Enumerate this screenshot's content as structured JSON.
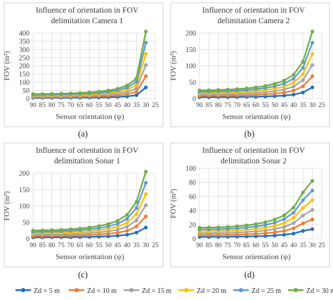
{
  "figure": {
    "legend": [
      {
        "label": "Zd = 5 m",
        "color": "#1f6fc0"
      },
      {
        "label": "Zd = 10 m",
        "color": "#ee7d31"
      },
      {
        "label": "Zd = 15 m",
        "color": "#a5a5a5"
      },
      {
        "label": "Zd = 20 m",
        "color": "#fec000"
      },
      {
        "label": "Zd = 25 m",
        "color": "#5b9bd5"
      },
      {
        "label": "Zd = 30 m",
        "color": "#6fad46"
      }
    ]
  },
  "chart_data": [
    {
      "type": "line",
      "panel_label": "(a)",
      "title": "Influence of orientation in FOV delimitation Camera 1",
      "title_lines": [
        "Influence of orientation in FOV",
        "delimitation Camera 1"
      ],
      "xlabel": "Sensor orientation (ψ)",
      "ylabel": "FOV (m²)",
      "x": [
        90,
        85,
        80,
        75,
        70,
        65,
        60,
        55,
        50,
        45,
        40,
        35,
        30
      ],
      "x_ticks": [
        90,
        85,
        80,
        75,
        70,
        65,
        60,
        55,
        50,
        45,
        40,
        35,
        30,
        25
      ],
      "ylim": [
        0,
        400
      ],
      "y_ticks": [
        0,
        50,
        100,
        150,
        200,
        250,
        300,
        350,
        400
      ],
      "grid": true,
      "series": [
        {
          "name": "Zd = 5 m",
          "values": [
            4.6,
            4.7,
            4.8,
            5.0,
            5.3,
            5.7,
            6.3,
            7.1,
            8.2,
            10.1,
            13.4,
            20.6,
            68.3
          ]
        },
        {
          "name": "Zd = 10 m",
          "values": [
            9.3,
            9.4,
            9.7,
            10.1,
            10.7,
            11.5,
            12.6,
            14.2,
            16.5,
            20.2,
            26.7,
            41.2,
            136.6
          ]
        },
        {
          "name": "Zd = 15 m",
          "values": [
            13.9,
            14.1,
            14.5,
            15.1,
            16.0,
            17.2,
            18.9,
            21.3,
            24.7,
            30.3,
            40.1,
            61.8,
            204.9
          ]
        },
        {
          "name": "Zd = 20 m",
          "values": [
            18.5,
            18.8,
            19.4,
            20.2,
            21.3,
            22.9,
            25.2,
            28.4,
            33.0,
            40.4,
            53.4,
            82.4,
            273.2
          ]
        },
        {
          "name": "Zd = 25 m",
          "values": [
            23.1,
            23.5,
            24.2,
            25.2,
            26.6,
            28.6,
            31.5,
            35.5,
            41.2,
            50.5,
            66.8,
            103.0,
            341.5
          ]
        },
        {
          "name": "Zd = 30 m",
          "values": [
            27.8,
            28.2,
            29.1,
            30.3,
            32.0,
            34.4,
            37.8,
            42.6,
            49.5,
            60.6,
            80.1,
            123.6,
            409.8
          ]
        }
      ]
    },
    {
      "type": "line",
      "panel_label": "(b)",
      "title": "Influence of orientation in FOV delimitation Camera 2",
      "title_lines": [
        "Influence of orientation in FOV",
        "delimitation Camera 2"
      ],
      "xlabel": "Sensor orientation (ψ)",
      "ylabel": "FOV (m²)",
      "x": [
        90,
        85,
        80,
        75,
        70,
        65,
        60,
        55,
        50,
        45,
        40,
        35,
        30
      ],
      "x_ticks": [
        90,
        85,
        80,
        75,
        70,
        65,
        60,
        55,
        50,
        45,
        40,
        35,
        30,
        25
      ],
      "ylim": [
        0,
        200
      ],
      "y_ticks": [
        0,
        50,
        100,
        150,
        200
      ],
      "grid": true,
      "series": [
        {
          "name": "Zd = 5 m",
          "values": [
            4.2,
            4.3,
            4.4,
            4.6,
            4.8,
            5.2,
            5.7,
            6.4,
            7.5,
            9.2,
            12.2,
            18.7,
            34.2
          ]
        },
        {
          "name": "Zd = 10 m",
          "values": [
            8.4,
            8.5,
            8.8,
            9.2,
            9.7,
            10.4,
            11.5,
            12.9,
            15.0,
            18.3,
            24.3,
            37.5,
            68.3
          ]
        },
        {
          "name": "Zd = 15 m",
          "values": [
            12.6,
            12.8,
            13.2,
            13.7,
            14.5,
            15.6,
            17.2,
            19.3,
            22.5,
            27.5,
            36.5,
            56.2,
            102.5
          ]
        },
        {
          "name": "Zd = 20 m",
          "values": [
            16.8,
            17.1,
            17.6,
            18.3,
            19.4,
            20.8,
            22.9,
            25.8,
            30.0,
            36.7,
            48.6,
            75.0,
            136.6
          ]
        },
        {
          "name": "Zd = 25 m",
          "values": [
            21.0,
            21.3,
            22.0,
            22.9,
            24.2,
            26.0,
            28.6,
            32.2,
            37.5,
            45.9,
            60.8,
            93.7,
            170.8
          ]
        },
        {
          "name": "Zd = 30 m",
          "values": [
            25.2,
            25.6,
            26.4,
            27.5,
            29.0,
            31.2,
            34.4,
            38.7,
            45.0,
            55.1,
            73.0,
            112.4,
            204.9
          ]
        }
      ]
    },
    {
      "type": "line",
      "panel_label": "(c)",
      "title": "Influence of orientation in FOV delimitation Sonar 1",
      "title_lines": [
        "Influence of orientation in FOV",
        "delimitation Sonar 1"
      ],
      "xlabel": "Sensor orientation (ψ)",
      "ylabel": "FOV (m²)",
      "x": [
        90,
        85,
        80,
        75,
        70,
        65,
        60,
        55,
        50,
        45,
        40,
        35,
        30
      ],
      "x_ticks": [
        90,
        85,
        80,
        75,
        70,
        65,
        60,
        55,
        50,
        45,
        40,
        35,
        30,
        25
      ],
      "ylim": [
        0,
        200
      ],
      "y_ticks": [
        0,
        50,
        100,
        150,
        200
      ],
      "grid": true,
      "series": [
        {
          "name": "Zd = 5 m",
          "values": [
            4.2,
            4.3,
            4.4,
            4.6,
            4.8,
            5.2,
            5.7,
            6.4,
            7.5,
            9.2,
            12.2,
            18.7,
            34.2
          ]
        },
        {
          "name": "Zd = 10 m",
          "values": [
            8.4,
            8.5,
            8.8,
            9.2,
            9.7,
            10.4,
            11.5,
            12.9,
            15.0,
            18.3,
            24.3,
            37.5,
            68.3
          ]
        },
        {
          "name": "Zd = 15 m",
          "values": [
            12.6,
            12.8,
            13.2,
            13.7,
            14.5,
            15.6,
            17.2,
            19.3,
            22.5,
            27.5,
            36.5,
            56.2,
            102.5
          ]
        },
        {
          "name": "Zd = 20 m",
          "values": [
            16.8,
            17.1,
            17.6,
            18.3,
            19.4,
            20.8,
            22.9,
            25.8,
            30.0,
            36.7,
            48.6,
            75.0,
            136.6
          ]
        },
        {
          "name": "Zd = 25 m",
          "values": [
            21.0,
            21.3,
            22.0,
            22.9,
            24.2,
            26.0,
            28.6,
            32.2,
            37.5,
            45.9,
            60.8,
            93.7,
            170.8
          ]
        },
        {
          "name": "Zd = 30 m",
          "values": [
            25.2,
            25.6,
            26.4,
            27.5,
            29.0,
            31.2,
            34.4,
            38.7,
            45.0,
            55.1,
            73.0,
            112.4,
            204.9
          ]
        }
      ]
    },
    {
      "type": "line",
      "panel_label": "(d)",
      "title": "Influence of orientation in FOV delimitation Sonar 2",
      "title_lines": [
        "Influence of orientation in FOV",
        "delimitation Sonar 2"
      ],
      "xlabel": "Sensor orientation (ψ)",
      "ylabel": "FOV (m²)",
      "x": [
        90,
        85,
        80,
        75,
        70,
        65,
        60,
        55,
        50,
        45,
        40,
        35,
        30
      ],
      "x_ticks": [
        90,
        85,
        80,
        75,
        70,
        65,
        60,
        55,
        50,
        45,
        40,
        35,
        30,
        25
      ],
      "ylim": [
        0,
        100
      ],
      "y_ticks": [
        0,
        20,
        40,
        60,
        80,
        100
      ],
      "grid": true,
      "series": [
        {
          "name": "Zd = 5 m",
          "values": [
            2.6,
            2.6,
            2.7,
            2.8,
            3.0,
            3.2,
            3.5,
            3.9,
            4.6,
            5.6,
            7.4,
            11.0,
            13.7
          ]
        },
        {
          "name": "Zd = 10 m",
          "values": [
            5.3,
            5.3,
            5.4,
            5.6,
            5.9,
            6.3,
            6.9,
            7.8,
            9.1,
            11.1,
            14.8,
            21.9,
            27.4
          ]
        },
        {
          "name": "Zd = 15 m",
          "values": [
            7.9,
            7.9,
            8.1,
            8.4,
            8.9,
            9.5,
            10.4,
            11.7,
            13.7,
            16.7,
            22.2,
            32.9,
            41.1
          ]
        },
        {
          "name": "Zd = 20 m",
          "values": [
            10.5,
            10.6,
            10.8,
            11.2,
            11.8,
            12.7,
            13.9,
            15.6,
            18.2,
            22.3,
            29.6,
            43.8,
            54.8
          ]
        },
        {
          "name": "Zd = 25 m",
          "values": [
            13.2,
            13.2,
            13.5,
            14.0,
            14.8,
            15.9,
            17.4,
            19.5,
            22.8,
            27.9,
            37.0,
            54.8,
            68.5
          ]
        },
        {
          "name": "Zd = 30 m",
          "values": [
            15.8,
            15.9,
            16.2,
            16.8,
            17.7,
            19.0,
            20.8,
            23.4,
            27.3,
            33.4,
            44.4,
            65.7,
            82.2
          ]
        }
      ]
    }
  ]
}
